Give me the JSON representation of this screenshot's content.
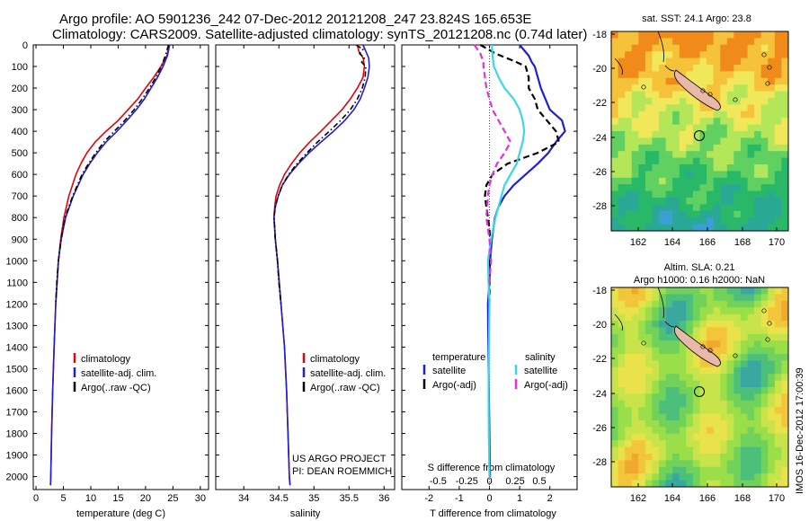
{
  "header": {
    "line1": "Argo profile: AO 5901236_242 07-Dec-2012 20121208_247 23.824S 165.653E",
    "line2": "Climatology: CARS2009. Satellite-adjusted climatology: synTS_20121208.nc (0.74d later)"
  },
  "depth_ticks": [
    0,
    100,
    200,
    300,
    400,
    500,
    600,
    700,
    800,
    900,
    1000,
    1100,
    1200,
    1300,
    1400,
    1500,
    1600,
    1700,
    1800,
    1900,
    2000
  ],
  "chart_data": [
    {
      "type": "line",
      "panel": "temperature",
      "xlabel": "temperature (deg C)",
      "xlim": [
        -0.5,
        31.5
      ],
      "xticks": [
        0,
        5,
        10,
        15,
        20,
        25,
        30
      ],
      "ylim": [
        2060,
        0
      ],
      "legend": [
        "climatology",
        "satellite-adj. clim.",
        "Argo(..raw -QC)"
      ],
      "legend_position": "lower-right",
      "colors": {
        "climatology": "#e8000b",
        "satellite": "#1f1fd6",
        "argo": "#000000"
      },
      "series": [
        {
          "name": "climatology",
          "style": "solid",
          "color": "#e8000b",
          "d": [
            0,
            50,
            100,
            150,
            200,
            250,
            300,
            350,
            400,
            450,
            500,
            550,
            600,
            700,
            800,
            900,
            1000,
            1200,
            1400,
            1600,
            1800,
            2000,
            2040
          ],
          "v": [
            24.3,
            23.9,
            22.8,
            21.5,
            20.0,
            18.6,
            16.8,
            15.0,
            12.8,
            10.8,
            9.3,
            8.2,
            7.3,
            6.0,
            5.1,
            4.5,
            4.1,
            3.6,
            3.3,
            3.05,
            2.85,
            2.7,
            2.65
          ]
        },
        {
          "name": "satellite-adj. clim.",
          "style": "solid",
          "color": "#1f1fd6",
          "d": [
            0,
            50,
            100,
            150,
            200,
            250,
            300,
            350,
            400,
            450,
            500,
            550,
            600,
            700,
            800,
            900,
            1000,
            1200,
            1400,
            1600,
            1800,
            2000,
            2040
          ],
          "v": [
            24.4,
            24.0,
            23.2,
            22.2,
            21.0,
            19.8,
            18.3,
            16.6,
            14.8,
            12.8,
            11.2,
            9.8,
            8.6,
            6.8,
            5.4,
            4.6,
            4.1,
            3.6,
            3.3,
            3.05,
            2.85,
            2.7,
            2.65
          ]
        },
        {
          "name": "Argo(..raw -QC)",
          "style": "dashdot",
          "color": "#000000",
          "d": [
            0,
            50,
            100,
            150,
            200,
            250,
            300,
            350,
            400,
            450,
            500,
            550,
            600,
            700,
            800,
            900,
            1000,
            1100,
            1200
          ],
          "v": [
            24.2,
            23.6,
            22.9,
            21.9,
            20.7,
            19.4,
            17.9,
            16.2,
            14.3,
            12.4,
            10.9,
            9.6,
            8.4,
            6.7,
            5.3,
            4.6,
            4.1,
            3.8,
            3.6
          ]
        }
      ]
    },
    {
      "type": "line",
      "panel": "salinity",
      "xlabel": "salinity",
      "xlim": [
        33.6,
        36.15
      ],
      "xticks": [
        34,
        34.5,
        35,
        35.5,
        36
      ],
      "ylim": [
        2060,
        0
      ],
      "legend": [
        "climatology",
        "satellite-adj. clim.",
        "Argo(..raw -QC)"
      ],
      "legend_position": "lower-right",
      "annotation": [
        "US ARGO PROJECT",
        "PI: DEAN ROEMMICH"
      ],
      "series": [
        {
          "name": "climatology",
          "style": "solid",
          "color": "#e8000b",
          "d": [
            0,
            30,
            60,
            100,
            150,
            200,
            250,
            300,
            350,
            400,
            450,
            500,
            550,
            600,
            650,
            700,
            750,
            800,
            850,
            900,
            1000,
            1200,
            1400,
            1600,
            1800,
            2000,
            2040
          ],
          "v": [
            35.62,
            35.64,
            35.7,
            35.72,
            35.7,
            35.62,
            35.52,
            35.4,
            35.25,
            35.1,
            34.94,
            34.8,
            34.68,
            34.58,
            34.51,
            34.46,
            34.44,
            34.43,
            34.44,
            34.45,
            34.48,
            34.53,
            34.58,
            34.61,
            34.63,
            34.65,
            34.66
          ]
        },
        {
          "name": "satellite-adj. clim.",
          "style": "solid",
          "color": "#1f1fd6",
          "d": [
            0,
            30,
            60,
            100,
            150,
            200,
            250,
            300,
            350,
            400,
            450,
            500,
            550,
            600,
            650,
            700,
            750,
            800,
            850,
            900,
            1000,
            1200,
            1400,
            1600,
            1800,
            2000,
            2040
          ],
          "v": [
            35.7,
            35.74,
            35.78,
            35.79,
            35.77,
            35.72,
            35.66,
            35.57,
            35.44,
            35.28,
            35.1,
            34.93,
            34.78,
            34.65,
            34.55,
            34.49,
            34.45,
            34.43,
            34.44,
            34.45,
            34.48,
            34.53,
            34.58,
            34.61,
            34.63,
            34.65,
            34.66
          ]
        },
        {
          "name": "Argo(..raw -QC)",
          "style": "dashdot",
          "color": "#000000",
          "d": [
            0,
            20,
            40,
            60,
            80,
            100,
            150,
            200,
            250,
            300,
            350,
            400,
            450,
            500,
            550,
            600,
            650,
            700,
            750,
            800,
            850,
            900,
            1000,
            1100,
            1200
          ],
          "v": [
            35.6,
            35.7,
            35.65,
            35.72,
            35.68,
            35.74,
            35.73,
            35.69,
            35.62,
            35.52,
            35.38,
            35.22,
            35.05,
            34.9,
            34.76,
            34.64,
            34.55,
            34.49,
            34.45,
            34.43,
            34.44,
            34.45,
            34.48,
            34.5,
            34.53
          ]
        }
      ]
    },
    {
      "type": "line",
      "panel": "difference",
      "xlabel": "T difference from climatology",
      "top_xlabel": "S difference from climatology",
      "xlim": [
        -2.9,
        2.9
      ],
      "xticks": [
        -2,
        -1,
        0,
        1,
        2
      ],
      "s_xticks": [
        "-0.5",
        "-0.25",
        "0",
        "0.25",
        "0.5"
      ],
      "ylim": [
        2060,
        0
      ],
      "legend_temperature_title": "temperature",
      "legend_salinity_title": "salinity",
      "legend": [
        "satellite",
        "Argo(-adj)",
        "satellite",
        "Argo(-adj)"
      ],
      "series": [
        {
          "name": "temperature satellite",
          "style": "solid",
          "color": "#1f1fd6",
          "d": [
            0,
            50,
            80,
            100,
            150,
            200,
            250,
            300,
            350,
            400,
            450,
            500,
            550,
            600,
            650,
            700,
            750,
            800,
            900,
            1000,
            1100,
            1200,
            1400,
            1600,
            1800,
            2000
          ],
          "v": [
            1.0,
            1.3,
            1.4,
            1.5,
            1.6,
            1.7,
            1.85,
            2.0,
            2.4,
            2.5,
            2.2,
            1.95,
            1.6,
            1.2,
            0.8,
            0.5,
            0.3,
            0.18,
            0.08,
            0.02,
            0.0,
            -0.05,
            -0.04,
            -0.02,
            0.0,
            0.02
          ]
        },
        {
          "name": "temperature Argo(-adj)",
          "style": "dashed",
          "color": "#000000",
          "d": [
            0,
            40,
            80,
            100,
            150,
            200,
            250,
            300,
            350,
            400,
            450,
            500,
            550,
            600,
            650,
            700,
            750,
            800,
            850,
            900,
            1000,
            1100,
            1200
          ],
          "v": [
            -0.3,
            0.2,
            0.9,
            1.2,
            1.3,
            1.3,
            1.5,
            1.6,
            1.9,
            2.2,
            2.3,
            1.6,
            0.6,
            0.1,
            -0.1,
            -0.15,
            -0.1,
            -0.05,
            0.0,
            0.02,
            0.02,
            0.0,
            0.0
          ]
        },
        {
          "name": "salinity satellite",
          "style": "solid",
          "color": "#3bd7e6",
          "d": [
            0,
            50,
            100,
            150,
            200,
            250,
            300,
            350,
            400,
            450,
            500,
            550,
            600,
            650,
            700,
            800,
            900,
            1000,
            1100,
            1200,
            1400,
            1600,
            1800,
            2000
          ],
          "v": [
            0.08,
            0.1,
            0.15,
            0.3,
            0.5,
            0.8,
            1.0,
            1.1,
            1.15,
            1.1,
            1.0,
            0.9,
            0.7,
            0.5,
            0.4,
            0.2,
            0.05,
            -0.05,
            -0.03,
            0.0,
            -0.02,
            -0.03,
            -0.02,
            0.0
          ]
        },
        {
          "name": "salinity Argo(-adj)",
          "style": "dashed",
          "color": "#e62ee6",
          "d": [
            0,
            40,
            80,
            100,
            150,
            200,
            250,
            300,
            350,
            400,
            450,
            500,
            550,
            600,
            650,
            700,
            800,
            900,
            1000,
            1100
          ],
          "v": [
            -0.5,
            -0.3,
            -0.2,
            -0.2,
            -0.15,
            -0.1,
            0.0,
            0.1,
            0.3,
            0.5,
            0.7,
            0.5,
            0.25,
            0.1,
            0.0,
            -0.05,
            -0.1,
            0.0,
            0.05,
            0.0
          ]
        }
      ]
    }
  ],
  "maps": [
    {
      "title": "sat. SST: 24.1  Argo: 23.8",
      "lon_ticks": [
        "162",
        "164",
        "166",
        "168",
        "170"
      ],
      "lat_ticks": [
        "-18",
        "-20",
        "-22",
        "-24",
        "-26",
        "-28"
      ],
      "colors": [
        "#f08a1a",
        "#f6c23a",
        "#f0e85a",
        "#b4e65a",
        "#60d060",
        "#28b868",
        "#2aa896",
        "#3c9ed6",
        "#4fc8e8"
      ]
    },
    {
      "title_line1": "Altim. SLA: 0.21",
      "title_line2": "Argo h1000: 0.16 h2000: NaN",
      "lon_ticks": [
        "162",
        "164",
        "166",
        "168",
        "170"
      ],
      "lat_ticks": [
        "-18",
        "-20",
        "-22",
        "-24",
        "-26",
        "-28"
      ],
      "colors": [
        "#3aa8a0",
        "#4cc07a",
        "#70d25a",
        "#9ade4a",
        "#c8e44a",
        "#eae24a",
        "#f3c53a",
        "#f0a82e"
      ]
    }
  ],
  "side_label": "IMOS 16-Dec-2012 17:00:39"
}
